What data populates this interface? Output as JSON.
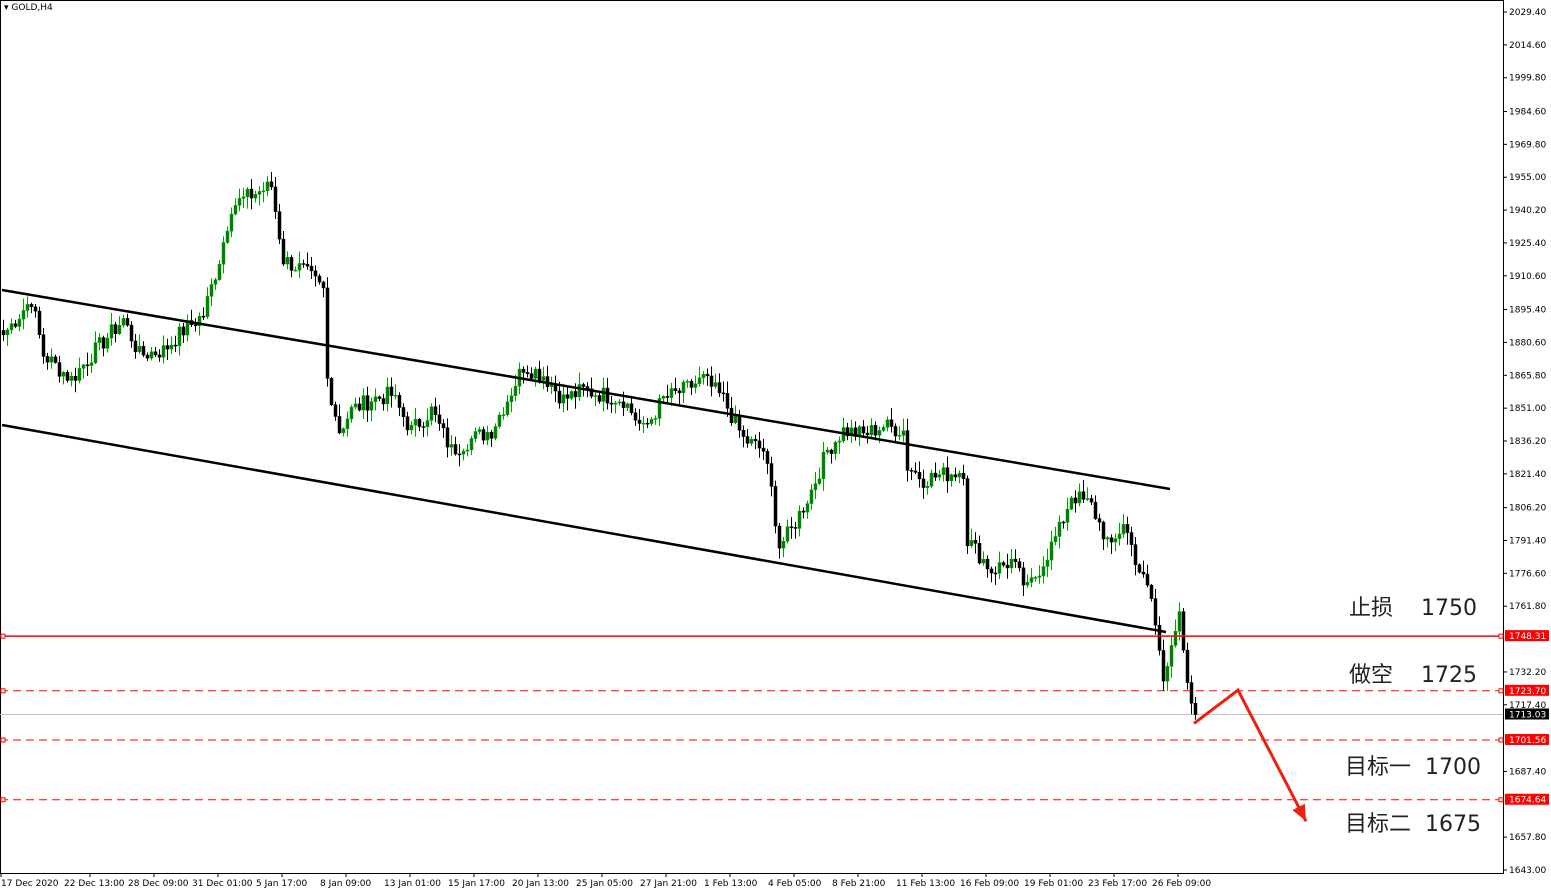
{
  "header": {
    "symbol_timeframe": "GOLD,H4"
  },
  "colors": {
    "bull": "#00a000",
    "bear": "#000000",
    "bull_body": "#008000",
    "level": "#ff0000",
    "current": "#c0c0c0",
    "channel": "#000000"
  },
  "annotations": [
    {
      "label": "止损",
      "value": "1750"
    },
    {
      "label": "做空",
      "value": "1725"
    },
    {
      "label": "目标一",
      "value": "1700"
    },
    {
      "label": "目标二",
      "value": "1675"
    }
  ],
  "chart_data": {
    "type": "candlestick",
    "title": "GOLD,H4",
    "ylim": [
      1643.0,
      2029.4
    ],
    "y_ticks": [
      "2029.40",
      "2014.60",
      "1999.80",
      "1984.60",
      "1969.80",
      "1955.00",
      "1940.20",
      "1925.40",
      "1910.60",
      "1895.40",
      "1880.60",
      "1865.80",
      "1851.00",
      "1836.20",
      "1821.40",
      "1806.20",
      "1791.40",
      "1776.60",
      "1761.80",
      "1732.20",
      "1717.40",
      "1687.40",
      "1657.80",
      "1643.00"
    ],
    "x_ticks": [
      "17 Dec 2020",
      "22 Dec 13:00",
      "28 Dec 09:00",
      "31 Dec 01:00",
      "5 Jan 17:00",
      "8 Jan 09:00",
      "13 Jan 01:00",
      "15 Jan 17:00",
      "20 Jan 13:00",
      "25 Jan 05:00",
      "27 Jan 21:00",
      "1 Feb 13:00",
      "4 Feb 05:00",
      "8 Feb 21:00",
      "11 Feb 13:00",
      "16 Feb 09:00",
      "19 Feb 01:00",
      "23 Feb 17:00",
      "26 Feb 09:00"
    ],
    "close_path": [
      [
        0,
        1884
      ],
      [
        7,
        1900
      ],
      [
        10,
        1875
      ],
      [
        17,
        1864
      ],
      [
        22,
        1875
      ],
      [
        30,
        1891
      ],
      [
        34,
        1875
      ],
      [
        40,
        1877
      ],
      [
        45,
        1886
      ],
      [
        50,
        1893
      ],
      [
        54,
        1918
      ],
      [
        57,
        1942
      ],
      [
        62,
        1947
      ],
      [
        67,
        1951
      ],
      [
        70,
        1918
      ],
      [
        75,
        1913
      ],
      [
        80,
        1904
      ],
      [
        81,
        1864
      ],
      [
        84,
        1841
      ],
      [
        87,
        1850
      ],
      [
        92,
        1855
      ],
      [
        97,
        1857
      ],
      [
        102,
        1841
      ],
      [
        107,
        1850
      ],
      [
        112,
        1832
      ],
      [
        117,
        1837
      ],
      [
        122,
        1841
      ],
      [
        126,
        1855
      ],
      [
        130,
        1870
      ],
      [
        135,
        1866
      ],
      [
        140,
        1855
      ],
      [
        145,
        1859
      ],
      [
        150,
        1857
      ],
      [
        155,
        1855
      ],
      [
        160,
        1841
      ],
      [
        165,
        1855
      ],
      [
        170,
        1859
      ],
      [
        175,
        1864
      ],
      [
        180,
        1855
      ],
      [
        185,
        1837
      ],
      [
        190,
        1832
      ],
      [
        192,
        1814
      ],
      [
        194,
        1789
      ],
      [
        197,
        1796
      ],
      [
        202,
        1814
      ],
      [
        206,
        1832
      ],
      [
        210,
        1841
      ],
      [
        215,
        1839
      ],
      [
        220,
        1843
      ],
      [
        225,
        1841
      ],
      [
        226,
        1825
      ],
      [
        230,
        1819
      ],
      [
        235,
        1821
      ],
      [
        240,
        1823
      ],
      [
        241,
        1792
      ],
      [
        247,
        1778
      ],
      [
        252,
        1782
      ],
      [
        256,
        1769
      ],
      [
        260,
        1782
      ],
      [
        264,
        1796
      ],
      [
        267,
        1812
      ],
      [
        272,
        1807
      ],
      [
        277,
        1787
      ],
      [
        280,
        1800
      ],
      [
        284,
        1778
      ],
      [
        287,
        1765
      ],
      [
        290,
        1729
      ],
      [
        292,
        1747
      ],
      [
        294,
        1756
      ],
      [
        296,
        1724
      ],
      [
        298,
        1713
      ]
    ],
    "channel_lines": [
      {
        "from": [
          0,
          1904.2
        ],
        "to": [
          292,
          1814.6
        ]
      },
      {
        "from": [
          0,
          1843.4
        ],
        "to": [
          291,
          1750.2
        ]
      }
    ],
    "levels": [
      {
        "price": 1748.31,
        "label": "1748.31",
        "style": "solid"
      },
      {
        "price": 1723.7,
        "label": "1723.70",
        "style": "dashed"
      },
      {
        "price": 1701.56,
        "label": "1701.56",
        "style": "dashed"
      },
      {
        "price": 1674.64,
        "label": "1674.64",
        "style": "dashed"
      }
    ],
    "current_price": {
      "price": 1713.03,
      "label": "1713.03"
    },
    "forecast_arrow": [
      [
        298,
        1709
      ],
      [
        309,
        1724
      ],
      [
        326,
        1665
      ]
    ]
  }
}
